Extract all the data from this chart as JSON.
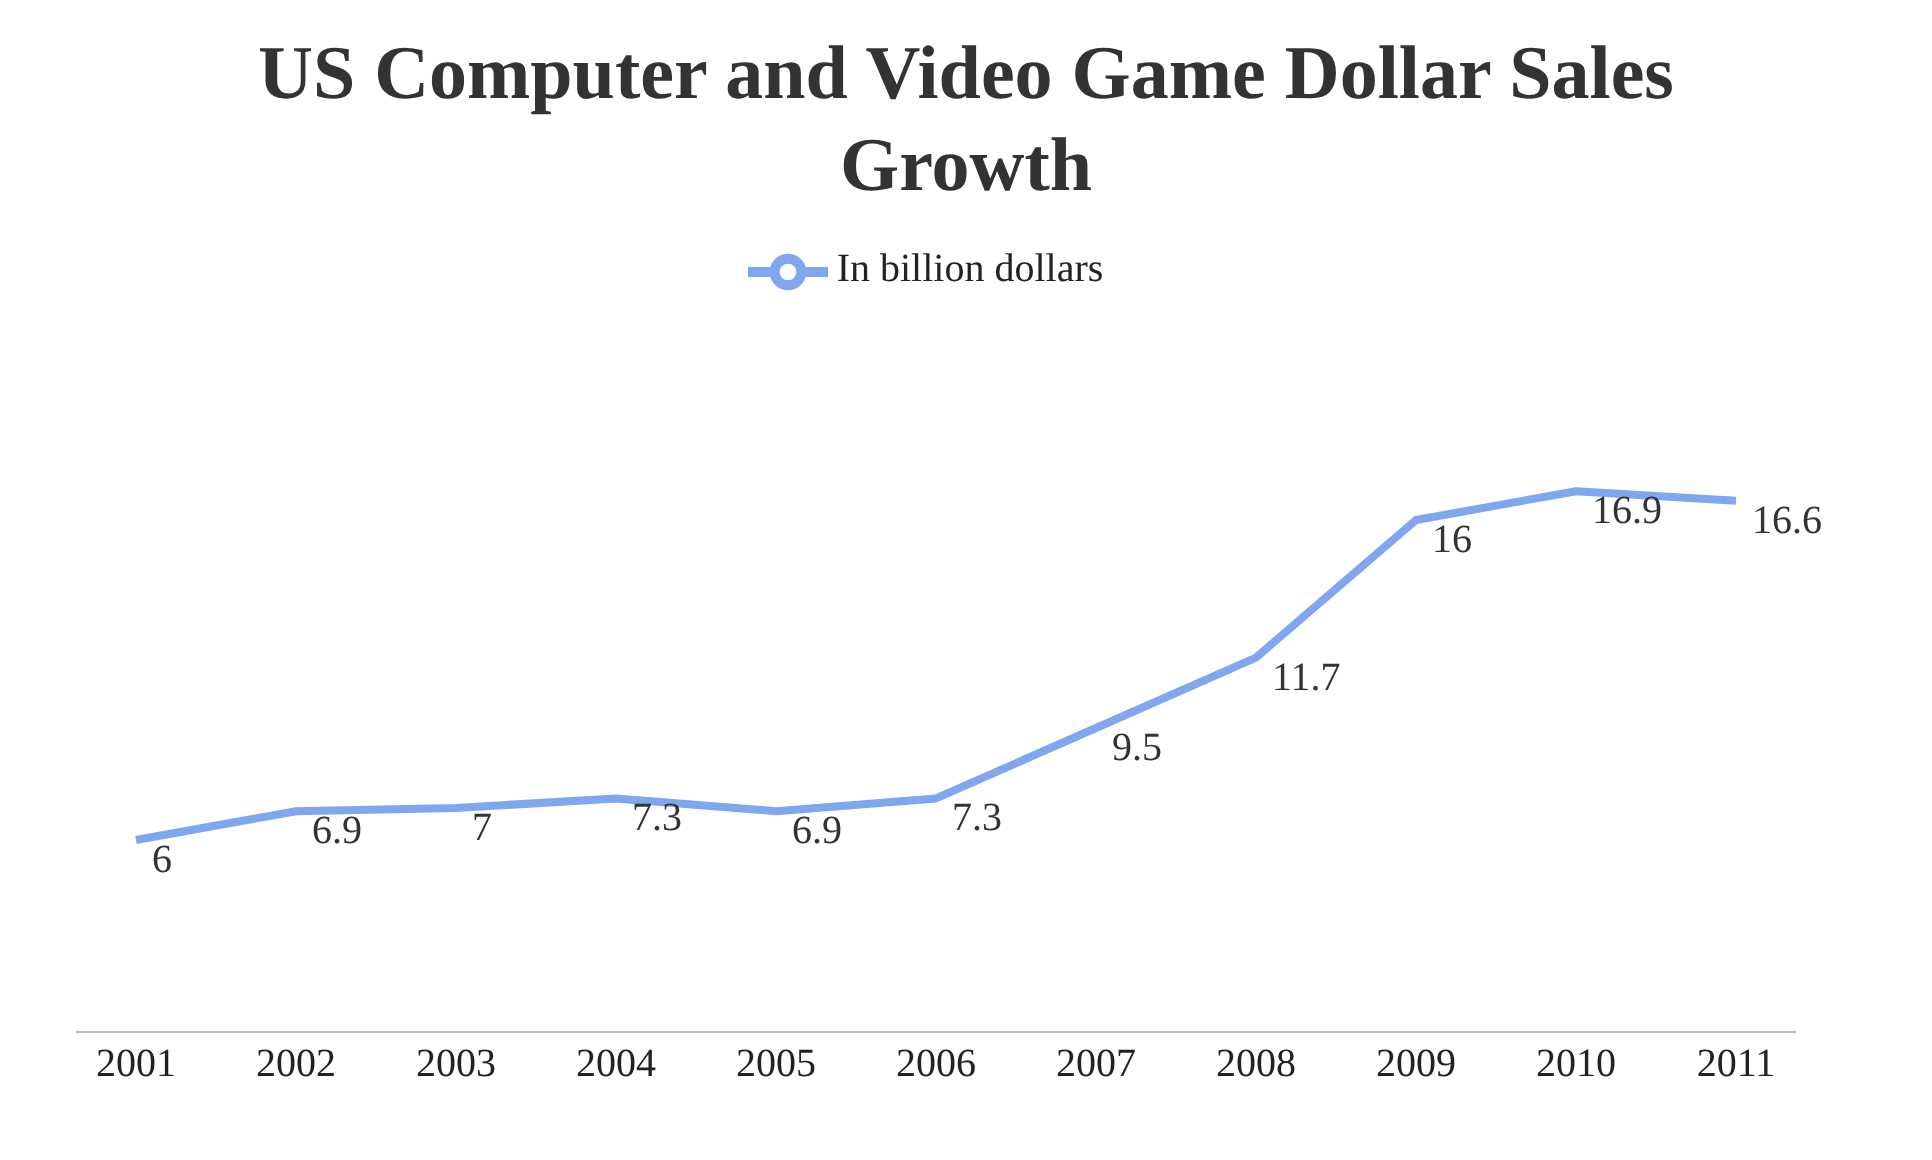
{
  "chart_data": {
    "type": "line",
    "title": "US Computer and Video Game Dollar Sales Growth",
    "categories": [
      "2001",
      "2002",
      "2003",
      "2004",
      "2005",
      "2006",
      "2007",
      "2008",
      "2009",
      "2010",
      "2011"
    ],
    "series": [
      {
        "name": "In billion dollars",
        "color": "#7fa6ee",
        "values": [
          6,
          6.9,
          7,
          7.3,
          6.9,
          7.3,
          9.5,
          11.7,
          16,
          16.9,
          16.6
        ]
      }
    ],
    "data_labels": true,
    "legend": "top",
    "grid": false,
    "marker": "none",
    "line_style": "solid"
  }
}
